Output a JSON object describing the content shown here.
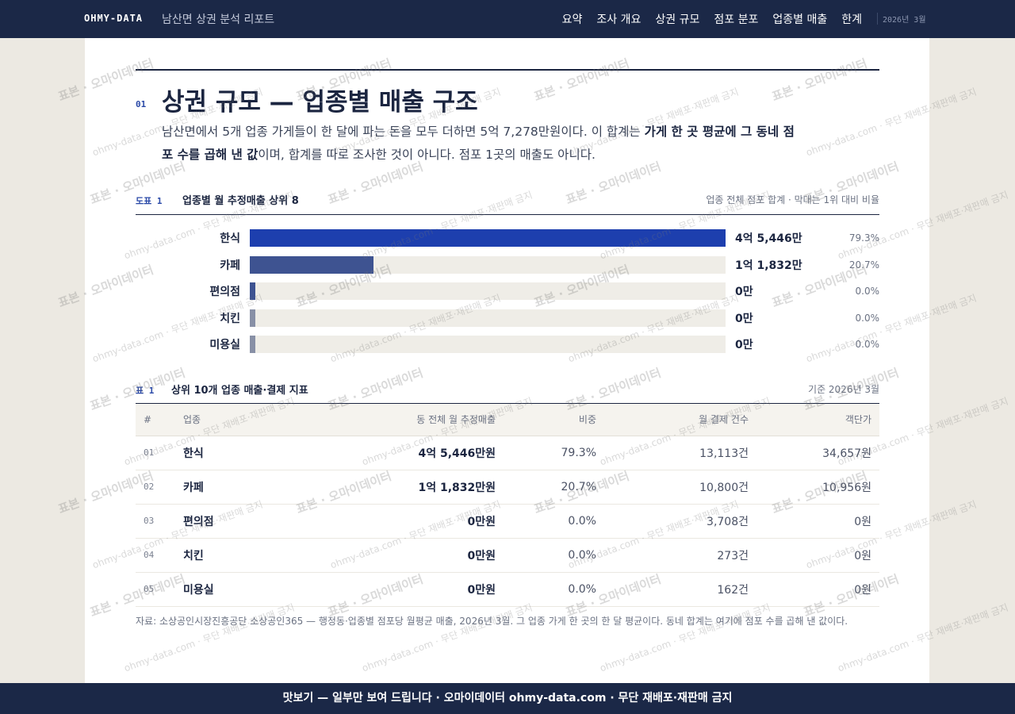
{
  "header": {
    "brand": "OHMY-DATA",
    "subtitle": "남산면 상권 분석 리포트",
    "nav": [
      "요약",
      "조사 개요",
      "상권 규모",
      "점포 분포",
      "업종별 매출",
      "한계"
    ],
    "date": "2026년 3월"
  },
  "section": {
    "number": "01",
    "title": "상권 규모 — 업종별 매출 구조",
    "paragraph": [
      "남산면에서 5개 업종 가게들이 한 달에 파는 돈을 모두 더하면 5억 7,278만원이다. 이 합계는 ",
      "가게 한 곳 평균에 그 동네 점포 수를 곱해 낸 값",
      "이며, 합계를 따로 조사한 것이 아니다. 점포 1곳의 매출도 아니다."
    ]
  },
  "chart": {
    "type": "bar",
    "label": "도표 1",
    "title": "업종별 월 추정매출 상위 8",
    "note": "업종 전체 점포 합계 · 막대는 1위 대비 비율",
    "categories": [
      "한식",
      "카페",
      "편의점",
      "치킨",
      "미용실"
    ],
    "values": [
      45446,
      11832,
      0,
      0,
      0
    ],
    "value_labels": [
      "4억 5,446만",
      "1억 1,832만",
      "0만",
      "0만",
      "0만"
    ],
    "shares": [
      79.3,
      20.7,
      0.0,
      0.0,
      0.0
    ],
    "share_labels": [
      "79.3%",
      "20.7%",
      "0.0%",
      "0.0%",
      "0.0%"
    ],
    "colors": [
      "#1d3fae",
      "#3e5391",
      "#3e5391",
      "#8890a6",
      "#8890a6"
    ]
  },
  "table": {
    "label": "표 1",
    "title": "상위 10개 업종 매출·결제 지표",
    "note": "기준 2026년 3월",
    "columns": [
      "#",
      "업종",
      "동 전체 월 추정매출",
      "비중",
      "월 결제 건수",
      "객단가"
    ],
    "rows": [
      [
        "01",
        "한식",
        "4억 5,446만원",
        "79.3%",
        "13,113건",
        "34,657원"
      ],
      [
        "02",
        "카페",
        "1억 1,832만원",
        "20.7%",
        "10,800건",
        "10,956원"
      ],
      [
        "03",
        "편의점",
        "0만원",
        "0.0%",
        "3,708건",
        "0원"
      ],
      [
        "04",
        "치킨",
        "0만원",
        "0.0%",
        "273건",
        "0원"
      ],
      [
        "05",
        "미용실",
        "0만원",
        "0.0%",
        "162건",
        "0원"
      ]
    ]
  },
  "footnote": "자료: 소상공인시장진흥공단 소상공인365 — 행정동·업종별 점포당 월평균 매출, 2026년 3월. 그 업종 가게 한 곳의 한 달 평균이다. 동네 합계는 여기에 점포 수를 곱해 낸 값이다.",
  "footer": "맛보기 — 일부만 보여 드립니다 · 오마이데이터 ohmy-data.com · 무단 재배포·재판매 금지",
  "watermark": [
    "표본 · 오마이데이터",
    "ohmy-data.com · 무단 재배포·재판매 금지"
  ]
}
